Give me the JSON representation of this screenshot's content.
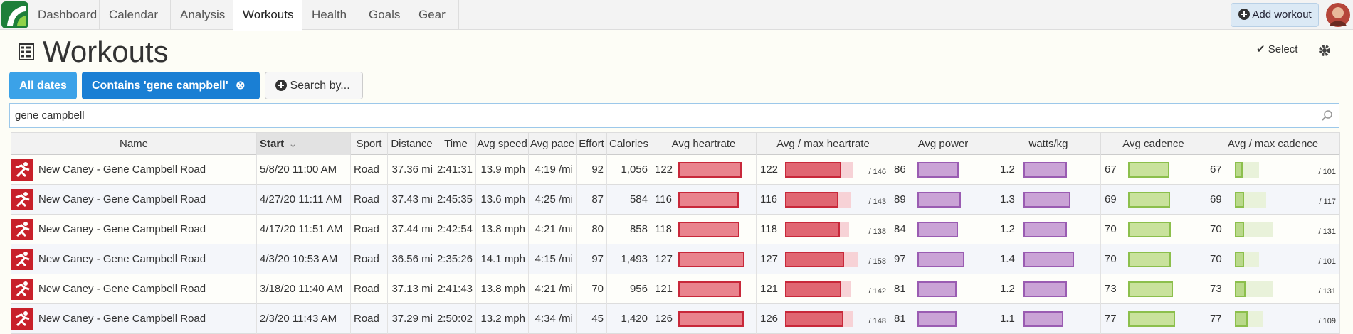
{
  "nav": {
    "tabs": [
      "Dashboard",
      "Calendar",
      "Analysis",
      "Workouts",
      "Health",
      "Goals",
      "Gear"
    ],
    "active": 3,
    "add_workout": "Add workout"
  },
  "header": {
    "title": "Workouts",
    "select": "Select"
  },
  "filters": {
    "all_dates": "All dates",
    "contains": "Contains 'gene campbell'",
    "search_by": "Search by..."
  },
  "search": {
    "query": "gene campbell"
  },
  "table": {
    "sorted_column": 1,
    "columns": [
      "Name",
      "Start",
      "Sport",
      "Distance",
      "Time",
      "Avg speed",
      "Avg pace",
      "Effort",
      "Calories",
      "Avg heartrate",
      "Avg / max heartrate",
      "Avg power",
      "watts/kg",
      "Avg cadence",
      "Avg / max cadence"
    ],
    "rows": [
      {
        "name": "New Caney - Gene Campbell Road",
        "start": "5/8/20 11:00 AM",
        "sport": "Road",
        "distance": "37.36 mi",
        "time": "2:41:31",
        "speed": "13.9 mph",
        "pace": "4:19 /mi",
        "effort": 92,
        "calories": "1,056",
        "heartrate": 122,
        "max_heartrate": {
          "value": 146,
          "label": "/ 146"
        },
        "power": 86,
        "watts_kg": 1.2,
        "cadence": 67,
        "max_cadence": {
          "value": 101,
          "label": "/ 101"
        }
      },
      {
        "name": "New Caney - Gene Campbell Road",
        "start": "4/27/20 11:11 AM",
        "sport": "Road",
        "distance": "37.43 mi",
        "time": "2:45:35",
        "speed": "13.6 mph",
        "pace": "4:25 /mi",
        "effort": 87,
        "calories": "584",
        "heartrate": 116,
        "max_heartrate": {
          "value": 143,
          "label": "/ 143"
        },
        "power": 89,
        "watts_kg": 1.3,
        "cadence": 69,
        "max_cadence": {
          "value": 117,
          "label": "/ 117"
        }
      },
      {
        "name": "New Caney - Gene Campbell Road",
        "start": "4/17/20 11:51 AM",
        "sport": "Road",
        "distance": "37.44 mi",
        "time": "2:42:54",
        "speed": "13.8 mph",
        "pace": "4:21 /mi",
        "effort": 80,
        "calories": "858",
        "heartrate": 118,
        "max_heartrate": {
          "value": 138,
          "label": "/ 138"
        },
        "power": 84,
        "watts_kg": 1.2,
        "cadence": 70,
        "max_cadence": {
          "value": 131,
          "label": "/ 131"
        }
      },
      {
        "name": "New Caney - Gene Campbell Road",
        "start": "4/3/20 10:53 AM",
        "sport": "Road",
        "distance": "36.56 mi",
        "time": "2:35:26",
        "speed": "14.1 mph",
        "pace": "4:15 /mi",
        "effort": 97,
        "calories": "1,493",
        "heartrate": 127,
        "max_heartrate": {
          "value": 158,
          "label": "/ 158"
        },
        "power": 97,
        "watts_kg": 1.4,
        "cadence": 70,
        "max_cadence": {
          "value": 101,
          "label": "/ 101"
        }
      },
      {
        "name": "New Caney - Gene Campbell Road",
        "start": "3/18/20 11:40 AM",
        "sport": "Road",
        "distance": "37.13 mi",
        "time": "2:41:43",
        "speed": "13.8 mph",
        "pace": "4:21 /mi",
        "effort": 70,
        "calories": "956",
        "heartrate": 121,
        "max_heartrate": {
          "value": 142,
          "label": "/ 142"
        },
        "power": 81,
        "watts_kg": 1.2,
        "cadence": 73,
        "max_cadence": {
          "value": 131,
          "label": "/ 131"
        }
      },
      {
        "name": "New Caney - Gene Campbell Road",
        "start": "2/3/20 11:43 AM",
        "sport": "Road",
        "distance": "37.29 mi",
        "time": "2:50:02",
        "speed": "13.2 mph",
        "pace": "4:34 /mi",
        "effort": 45,
        "calories": "1,420",
        "heartrate": 126,
        "max_heartrate": {
          "value": 148,
          "label": "/ 148"
        },
        "power": 81,
        "watts_kg": 1.1,
        "cadence": 77,
        "max_cadence": {
          "value": 109,
          "label": "/ 109"
        }
      }
    ]
  }
}
